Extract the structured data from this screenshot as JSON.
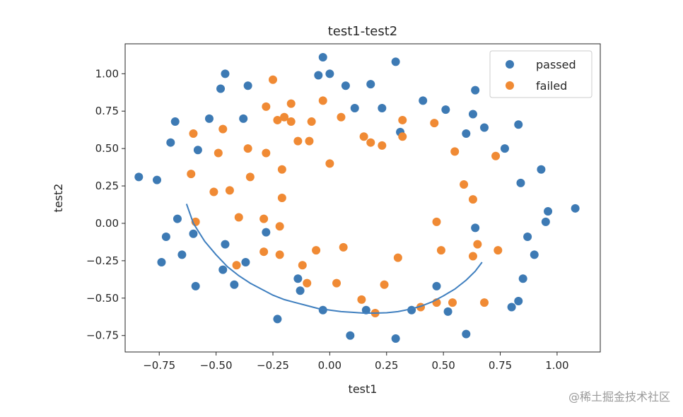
{
  "chart_data": {
    "type": "scatter",
    "title": "test1-test2",
    "xlabel": "test1",
    "ylabel": "test2",
    "xlim": [
      -0.9,
      1.19
    ],
    "ylim": [
      -0.86,
      1.2
    ],
    "xticks": [
      -0.75,
      -0.5,
      -0.25,
      0.0,
      0.25,
      0.5,
      0.75,
      1.0
    ],
    "xtick_labels": [
      "−0.75",
      "−0.50",
      "−0.25",
      "0.00",
      "0.25",
      "0.50",
      "0.75",
      "1.00"
    ],
    "yticks": [
      -0.75,
      -0.5,
      -0.25,
      0.0,
      0.25,
      0.5,
      0.75,
      1.0
    ],
    "ytick_labels": [
      "−0.75",
      "−0.50",
      "−0.25",
      "0.00",
      "0.25",
      "0.50",
      "0.75",
      "1.00"
    ],
    "grid": false,
    "legend_position": "top-right",
    "series": [
      {
        "name": "passed",
        "color": "#3d7ab4",
        "points": [
          [
            -0.03,
            1.11
          ],
          [
            0.29,
            1.08
          ],
          [
            -0.05,
            0.99
          ],
          [
            0.0,
            1.0
          ],
          [
            -0.46,
            1.0
          ],
          [
            0.07,
            0.92
          ],
          [
            0.18,
            0.93
          ],
          [
            -0.48,
            0.9
          ],
          [
            -0.36,
            0.92
          ],
          [
            0.64,
            0.89
          ],
          [
            0.41,
            0.82
          ],
          [
            0.11,
            0.77
          ],
          [
            0.23,
            0.77
          ],
          [
            0.51,
            0.76
          ],
          [
            0.63,
            0.73
          ],
          [
            -0.53,
            0.7
          ],
          [
            -0.38,
            0.7
          ],
          [
            -0.68,
            0.68
          ],
          [
            0.83,
            0.66
          ],
          [
            0.68,
            0.64
          ],
          [
            0.6,
            0.6
          ],
          [
            0.31,
            0.61
          ],
          [
            -0.7,
            0.54
          ],
          [
            -0.58,
            0.49
          ],
          [
            0.77,
            0.5
          ],
          [
            0.93,
            0.36
          ],
          [
            -0.84,
            0.31
          ],
          [
            -0.76,
            0.29
          ],
          [
            0.84,
            0.27
          ],
          [
            1.08,
            0.1
          ],
          [
            0.96,
            0.08
          ],
          [
            -0.67,
            0.03
          ],
          [
            0.95,
            0.01
          ],
          [
            -0.6,
            -0.07
          ],
          [
            -0.28,
            -0.06
          ],
          [
            0.64,
            -0.03
          ],
          [
            -0.72,
            -0.09
          ],
          [
            0.87,
            -0.09
          ],
          [
            -0.46,
            -0.14
          ],
          [
            -0.65,
            -0.21
          ],
          [
            0.9,
            -0.21
          ],
          [
            -0.74,
            -0.26
          ],
          [
            -0.37,
            -0.26
          ],
          [
            -0.47,
            -0.31
          ],
          [
            -0.14,
            -0.37
          ],
          [
            0.85,
            -0.37
          ],
          [
            -0.42,
            -0.41
          ],
          [
            -0.59,
            -0.42
          ],
          [
            0.47,
            -0.42
          ],
          [
            -0.13,
            -0.45
          ],
          [
            0.83,
            -0.52
          ],
          [
            0.8,
            -0.56
          ],
          [
            -0.03,
            -0.58
          ],
          [
            0.16,
            -0.58
          ],
          [
            0.36,
            -0.58
          ],
          [
            0.52,
            -0.59
          ],
          [
            -0.23,
            -0.64
          ],
          [
            0.09,
            -0.75
          ],
          [
            0.6,
            -0.74
          ],
          [
            0.29,
            -0.77
          ]
        ]
      },
      {
        "name": "failed",
        "color": "#f08a34",
        "points": [
          [
            -0.25,
            0.96
          ],
          [
            -0.03,
            0.82
          ],
          [
            -0.28,
            0.78
          ],
          [
            -0.17,
            0.8
          ],
          [
            -0.2,
            0.71
          ],
          [
            0.05,
            0.71
          ],
          [
            -0.17,
            0.68
          ],
          [
            -0.08,
            0.68
          ],
          [
            -0.23,
            0.69
          ],
          [
            0.32,
            0.69
          ],
          [
            0.46,
            0.67
          ],
          [
            -0.47,
            0.63
          ],
          [
            -0.6,
            0.6
          ],
          [
            0.15,
            0.58
          ],
          [
            0.32,
            0.58
          ],
          [
            0.18,
            0.54
          ],
          [
            0.23,
            0.52
          ],
          [
            -0.14,
            0.55
          ],
          [
            -0.09,
            0.55
          ],
          [
            -0.36,
            0.5
          ],
          [
            -0.28,
            0.47
          ],
          [
            -0.49,
            0.47
          ],
          [
            0.55,
            0.48
          ],
          [
            0.73,
            0.45
          ],
          [
            -0.0,
            0.4
          ],
          [
            -0.21,
            0.36
          ],
          [
            -0.35,
            0.31
          ],
          [
            -0.61,
            0.33
          ],
          [
            0.59,
            0.26
          ],
          [
            -0.44,
            0.22
          ],
          [
            -0.51,
            0.21
          ],
          [
            -0.21,
            0.17
          ],
          [
            0.63,
            0.16
          ],
          [
            -0.4,
            0.04
          ],
          [
            -0.29,
            0.03
          ],
          [
            -0.59,
            0.01
          ],
          [
            0.47,
            0.01
          ],
          [
            -0.22,
            -0.02
          ],
          [
            0.06,
            -0.16
          ],
          [
            -0.06,
            -0.18
          ],
          [
            0.49,
            -0.18
          ],
          [
            0.74,
            -0.18
          ],
          [
            -0.29,
            -0.19
          ],
          [
            -0.22,
            -0.21
          ],
          [
            0.65,
            -0.14
          ],
          [
            0.3,
            -0.23
          ],
          [
            0.63,
            -0.22
          ],
          [
            -0.12,
            -0.28
          ],
          [
            -0.41,
            -0.28
          ],
          [
            -0.1,
            -0.4
          ],
          [
            0.03,
            -0.4
          ],
          [
            0.24,
            -0.41
          ],
          [
            0.14,
            -0.51
          ],
          [
            0.47,
            -0.53
          ],
          [
            0.54,
            -0.53
          ],
          [
            0.68,
            -0.53
          ],
          [
            0.4,
            -0.56
          ],
          [
            0.2,
            -0.6
          ]
        ]
      }
    ],
    "curve": {
      "color": "#3f7fbf",
      "points": [
        [
          -0.63,
          0.13
        ],
        [
          -0.6,
          0.0
        ],
        [
          -0.55,
          -0.12
        ],
        [
          -0.5,
          -0.21
        ],
        [
          -0.45,
          -0.29
        ],
        [
          -0.4,
          -0.35
        ],
        [
          -0.35,
          -0.4
        ],
        [
          -0.3,
          -0.44
        ],
        [
          -0.25,
          -0.48
        ],
        [
          -0.2,
          -0.51
        ],
        [
          -0.15,
          -0.53
        ],
        [
          -0.1,
          -0.55
        ],
        [
          -0.05,
          -0.57
        ],
        [
          0.0,
          -0.58
        ],
        [
          0.05,
          -0.59
        ],
        [
          0.1,
          -0.595
        ],
        [
          0.15,
          -0.6
        ],
        [
          0.2,
          -0.6
        ],
        [
          0.25,
          -0.598
        ],
        [
          0.3,
          -0.59
        ],
        [
          0.35,
          -0.575
        ],
        [
          0.4,
          -0.555
        ],
        [
          0.45,
          -0.525
        ],
        [
          0.5,
          -0.485
        ],
        [
          0.55,
          -0.44
        ],
        [
          0.6,
          -0.38
        ],
        [
          0.64,
          -0.32
        ],
        [
          0.67,
          -0.26
        ]
      ]
    }
  },
  "watermark": "@稀土掘金技术社区"
}
